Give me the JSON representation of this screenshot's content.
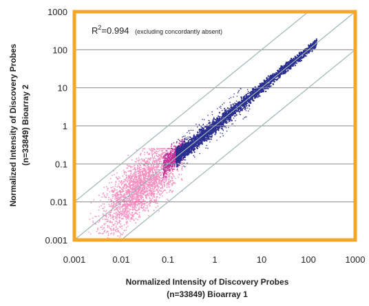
{
  "chart_data": {
    "type": "scatter",
    "xscale": "log",
    "yscale": "log",
    "xlim": [
      0.001,
      1000
    ],
    "ylim": [
      0.001,
      1000
    ],
    "x_ticks": [
      "0.001",
      "0.01",
      "0.1",
      "1",
      "10",
      "100",
      "1000"
    ],
    "y_ticks": [
      "0.001",
      "0.01",
      "0.1",
      "1",
      "10",
      "100",
      "1000"
    ],
    "xlabel_line1": "Normalized Intensity of Discovery Probes",
    "xlabel_line2": "(n=33849) Bioarray 1",
    "ylabel_line1": "Normalized Intensity of Discovery Probes",
    "ylabel_line2": "(n=33849) Bioarray 2",
    "annotation": {
      "prefix": "R",
      "superscript": "2",
      "value": "=0.994",
      "note": "(excluding concordantly absent)"
    },
    "grid": "horizontal",
    "frame_color": "#F5A623",
    "reference_lines": [
      {
        "kind": "identity",
        "factor": 1,
        "color": "#9DB5B5"
      },
      {
        "kind": "fold",
        "factor": 10,
        "color": "#9DB5B5"
      },
      {
        "kind": "fold",
        "factor": 0.1,
        "color": "#9DB5B5"
      }
    ],
    "series": [
      {
        "color": "#F48FC0",
        "x_range": [
          0.003,
          0.2
        ],
        "y_range": [
          0.003,
          0.25
        ]
      },
      {
        "color": "#C2329A",
        "x_range": [
          0.08,
          0.22
        ],
        "y_range": [
          0.08,
          0.3
        ]
      },
      {
        "color": "#2B2F8F",
        "x_range": [
          0.15,
          150
        ],
        "y_range": [
          0.15,
          150
        ]
      }
    ]
  }
}
